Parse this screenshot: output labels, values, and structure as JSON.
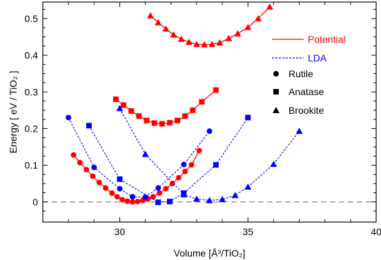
{
  "chart_data": {
    "type": "line",
    "xlabel": "Volume [Å³/TiO₂]",
    "ylabel": "Energy [ eV / TiO₂ ]",
    "xlim": [
      27,
      40
    ],
    "ylim": [
      -0.055,
      0.545
    ],
    "x_ticks": [
      30,
      35,
      40
    ],
    "x_tick_labels": [
      "30",
      "35",
      "40"
    ],
    "y_ticks": [
      0,
      0.1,
      0.2,
      0.3,
      0.4,
      0.5
    ],
    "y_tick_labels": [
      "0",
      "0.1",
      "0.2",
      "0.3",
      "0.4",
      "0.5"
    ],
    "reference_line": 0,
    "grid": false,
    "legend_position": "right",
    "legend": {
      "lines": [
        {
          "label": "Potential",
          "color": "#ff0000",
          "style": "solid"
        },
        {
          "label": "LDA",
          "color": "#0000ff",
          "style": "dashed"
        }
      ],
      "markers": [
        {
          "label": "Rutile",
          "marker": "circle"
        },
        {
          "label": "Anatase",
          "marker": "square"
        },
        {
          "label": "Brookite",
          "marker": "triangle"
        }
      ]
    },
    "series": [
      {
        "method": "Potential",
        "phase": "Rutile",
        "color": "#ff0000",
        "style": "solid",
        "marker": "circle",
        "x": [
          28.2,
          28.45,
          28.7,
          28.95,
          29.2,
          29.45,
          29.7,
          29.9,
          30.1,
          30.3,
          30.5,
          30.7,
          30.9,
          31.1,
          31.3,
          31.55,
          31.8,
          32.05,
          32.3,
          32.55,
          32.8,
          33.1
        ],
        "y": [
          0.128,
          0.107,
          0.088,
          0.07,
          0.053,
          0.038,
          0.024,
          0.014,
          0.006,
          0.002,
          0.0,
          0.001,
          0.004,
          0.008,
          0.014,
          0.024,
          0.036,
          0.05,
          0.066,
          0.083,
          0.101,
          0.14
        ]
      },
      {
        "method": "Potential",
        "phase": "Anatase",
        "color": "#ff0000",
        "style": "solid",
        "marker": "square",
        "x": [
          29.85,
          30.15,
          30.45,
          30.75,
          31.05,
          31.35,
          31.65,
          31.95,
          32.25,
          32.55,
          32.85,
          33.2,
          33.75
        ],
        "y": [
          0.28,
          0.264,
          0.248,
          0.234,
          0.222,
          0.215,
          0.213,
          0.216,
          0.222,
          0.234,
          0.25,
          0.273,
          0.305
        ]
      },
      {
        "method": "Potential",
        "phase": "Brookite",
        "color": "#ff0000",
        "style": "solid",
        "marker": "triangle",
        "x": [
          31.2,
          31.5,
          31.8,
          32.1,
          32.4,
          32.7,
          33.0,
          33.3,
          33.6,
          33.9,
          34.25,
          34.6,
          35.0,
          35.4,
          35.85
        ],
        "y": [
          0.508,
          0.489,
          0.472,
          0.456,
          0.444,
          0.436,
          0.43,
          0.429,
          0.43,
          0.434,
          0.446,
          0.459,
          0.476,
          0.5,
          0.532
        ]
      },
      {
        "method": "LDA",
        "phase": "Rutile",
        "color": "#0000ff",
        "style": "dashed",
        "marker": "circle",
        "x": [
          28.0,
          29.0,
          30.0,
          30.5,
          31.0,
          31.5,
          32.5,
          33.5
        ],
        "y": [
          0.23,
          0.094,
          0.036,
          0.014,
          0.013,
          0.038,
          0.102,
          0.193
        ]
      },
      {
        "method": "LDA",
        "phase": "Anatase",
        "color": "#0000ff",
        "style": "dashed",
        "marker": "square",
        "x": [
          28.8,
          30.0,
          31.5,
          31.95,
          32.5,
          33.75,
          35.0
        ],
        "y": [
          0.208,
          0.062,
          -0.001,
          0.001,
          0.024,
          0.101,
          0.23
        ]
      },
      {
        "method": "LDA",
        "phase": "Brookite",
        "color": "#0000ff",
        "style": "dashed",
        "marker": "triangle",
        "x": [
          30.0,
          31.0,
          32.5,
          33.0,
          33.5,
          34.0,
          34.5,
          35.0,
          36.0,
          37.0
        ],
        "y": [
          0.255,
          0.13,
          0.02,
          0.008,
          0.004,
          0.007,
          0.018,
          0.041,
          0.103,
          0.193
        ]
      }
    ]
  }
}
